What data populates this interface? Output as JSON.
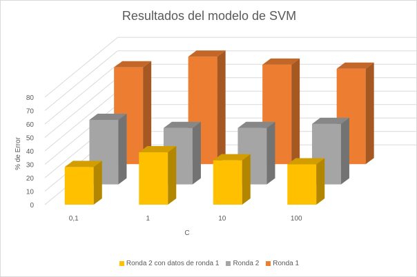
{
  "chart_data": {
    "type": "bar",
    "title": "Resultados del modelo de SVM",
    "xlabel": "C",
    "ylabel": "% de Error",
    "categories": [
      "0,1",
      "1",
      "10",
      "100"
    ],
    "ylim": [
      0,
      80
    ],
    "yticks": [
      "0",
      "10",
      "20",
      "30",
      "40",
      "50",
      "60",
      "70",
      "80"
    ],
    "grid": true,
    "legend_position": "bottom",
    "series": [
      {
        "name": "Ronda 2 con datos de ronda 1",
        "values": [
          28,
          39,
          33,
          30
        ],
        "color": "#FFC000"
      },
      {
        "name": "Ronda 2",
        "values": [
          48,
          42,
          42,
          45
        ],
        "color": "#A5A5A5"
      },
      {
        "name": "Ronda 1",
        "values": [
          72,
          80,
          74,
          71
        ],
        "color": "#ED7D31"
      }
    ]
  }
}
